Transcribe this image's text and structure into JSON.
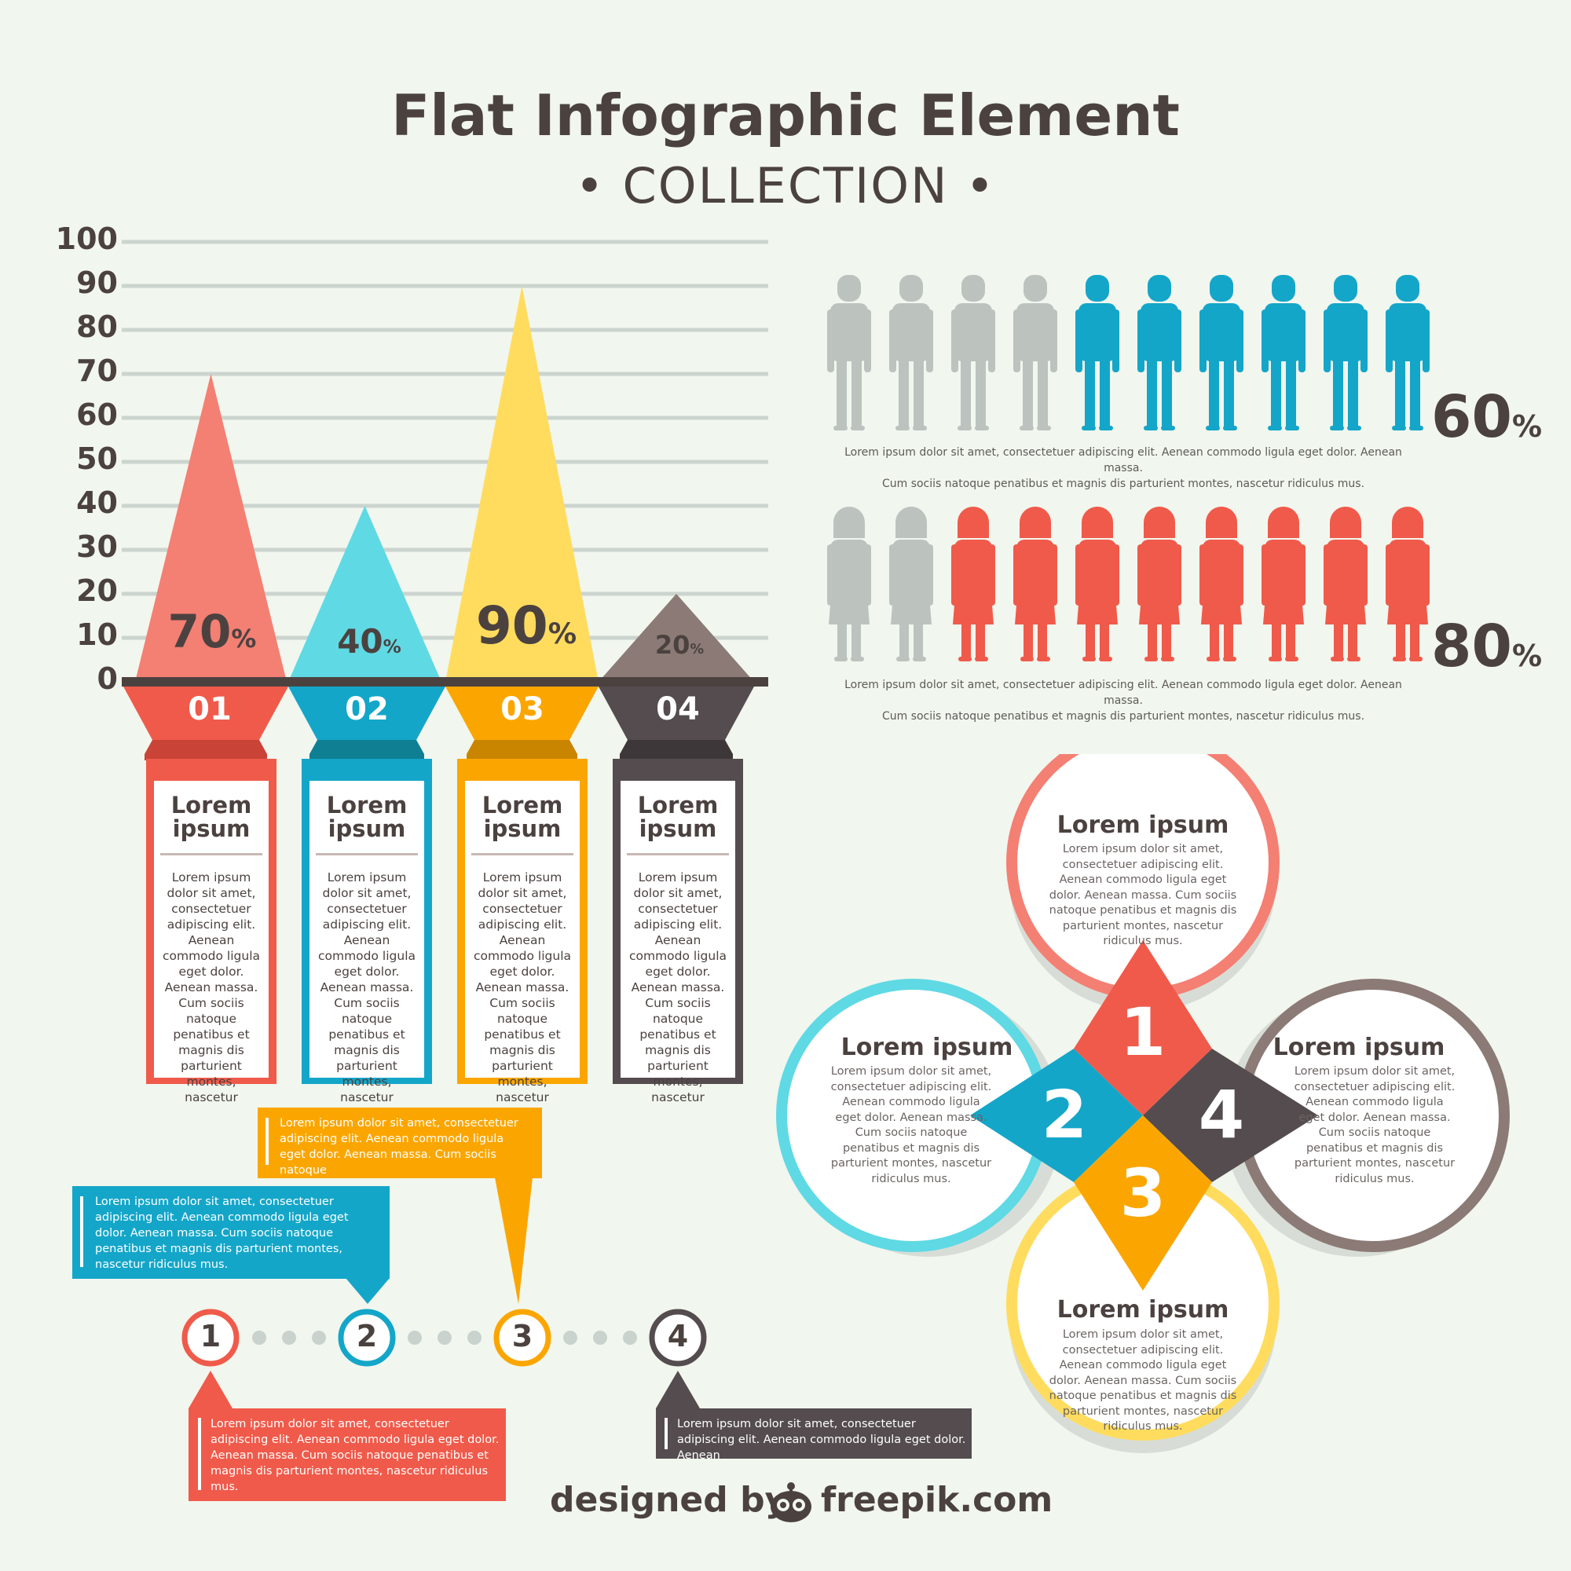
{
  "header": {
    "title": "Flat Infographic Element",
    "subtitle": "• COLLECTION •"
  },
  "bar_chart": {
    "ticks": [
      "100",
      "90",
      "80",
      "70",
      "60",
      "50",
      "40",
      "30",
      "20",
      "10",
      "0"
    ],
    "bars": [
      {
        "value": 70,
        "label": "70",
        "unit": "%",
        "number": "01",
        "title": "Lorem ipsum",
        "body": "Lorem ipsum dolor sit amet, consectetuer adipiscing elit. Aenean commodo ligula eget dolor. Aenean massa. Cum sociis natoque penatibus et magnis dis parturient montes, nascetur",
        "color": "#f47f73"
      },
      {
        "value": 40,
        "label": "40",
        "unit": "%",
        "number": "02",
        "title": "Lorem ipsum",
        "body": "Lorem ipsum dolor sit amet, consectetuer adipiscing elit. Aenean commodo ligula eget dolor. Aenean massa. Cum sociis natoque penatibus et magnis dis parturient montes, nascetur",
        "color": "#5fd9e4"
      },
      {
        "value": 90,
        "label": "90",
        "unit": "%",
        "number": "03",
        "title": "Lorem ipsum",
        "body": "Lorem ipsum dolor sit amet, consectetuer adipiscing elit. Aenean commodo ligula eget dolor. Aenean massa. Cum sociis natoque penatibus et magnis dis parturient montes, nascetur",
        "color": "#ffdc5e"
      },
      {
        "value": 20,
        "label": "20",
        "unit": "%",
        "number": "04",
        "title": "Lorem ipsum",
        "body": "Lorem ipsum dolor sit amet, consectetuer adipiscing elit. Aenean commodo ligula eget dolor. Aenean massa. Cum sociis natoque penatibus et magnis dis parturient montes, nascetur",
        "color": "#8b7a75"
      }
    ]
  },
  "people": {
    "men": {
      "filled": 6,
      "total": 10,
      "value": "60",
      "unit": "%",
      "text1": "Lorem ipsum dolor sit amet, consectetuer adipiscing elit. Aenean commodo ligula eget dolor. Aenean massa.",
      "text2": "Cum sociis natoque penatibus et magnis dis parturient montes, nascetur ridiculus mus.",
      "color": "#14a6c9"
    },
    "women": {
      "filled": 8,
      "total": 10,
      "value": "80",
      "unit": "%",
      "text1": "Lorem ipsum dolor sit amet, consectetuer adipiscing elit. Aenean commodo ligula eget dolor. Aenean massa.",
      "text2": "Cum sociis natoque penatibus et magnis dis parturient montes, nascetur ridiculus mus.",
      "color": "#f05a4a"
    }
  },
  "steps": {
    "numbers": [
      "1",
      "2",
      "3",
      "4"
    ],
    "bubble_orange": "Lorem ipsum dolor sit amet, consectetuer adipiscing elit. Aenean commodo ligula eget dolor. Aenean massa. Cum sociis natoque",
    "bubble_blue": "Lorem ipsum dolor sit amet, consectetuer adipiscing elit. Aenean commodo ligula eget dolor. Aenean massa. Cum sociis natoque penatibus et magnis dis parturient montes, nascetur ridiculus mus.",
    "bubble_red": "Lorem ipsum dolor sit amet, consectetuer adipiscing elit. Aenean commodo ligula eget dolor. Aenean massa. Cum sociis natoque penatibus et magnis dis parturient montes, nascetur ridiculus mus.",
    "bubble_gray": "Lorem ipsum dolor sit amet, consectetuer adipiscing elit. Aenean commodo ligula eget dolor. Aenean"
  },
  "circles": {
    "top": {
      "title": "Lorem ipsum",
      "body": "Lorem ipsum dolor sit amet, consectetuer adipiscing elit. Aenean commodo ligula eget dolor. Aenean massa. Cum sociis natoque penatibus et magnis dis parturient montes, nascetur ridiculus mus."
    },
    "left": {
      "title": "Lorem ipsum",
      "body": "Lorem ipsum dolor sit amet, consectetuer adipiscing elit. Aenean commodo ligula eget dolor. Aenean massa. Cum sociis natoque penatibus et magnis dis parturient montes, nascetur ridiculus mus."
    },
    "right": {
      "title": "Lorem ipsum",
      "body": "Lorem ipsum dolor sit amet, consectetuer adipiscing elit. Aenean commodo ligula eget dolor. Aenean massa. Cum sociis natoque penatibus et magnis dis parturient montes, nascetur ridiculus mus."
    },
    "bottom": {
      "title": "Lorem ipsum",
      "body": "Lorem ipsum dolor sit amet, consectetuer adipiscing elit. Aenean commodo ligula eget dolor. Aenean massa. Cum sociis natoque penatibus et magnis dis parturient montes, nascetur ridiculus mus."
    },
    "diamonds": [
      "1",
      "2",
      "3",
      "4"
    ]
  },
  "footer": {
    "credit_left": "designed by",
    "credit_right": "freepik.com",
    "logo_icon": "freepik-logo-icon"
  },
  "colors": {
    "red": "#f05a4a",
    "salmon": "#f47f73",
    "blue": "#14a6c9",
    "cyan": "#5fd9e4",
    "orange": "#fba600",
    "yellow": "#ffdc5e",
    "dark": "#544c4f",
    "taupe": "#8b7a75",
    "gray": "#bcc3bf"
  }
}
